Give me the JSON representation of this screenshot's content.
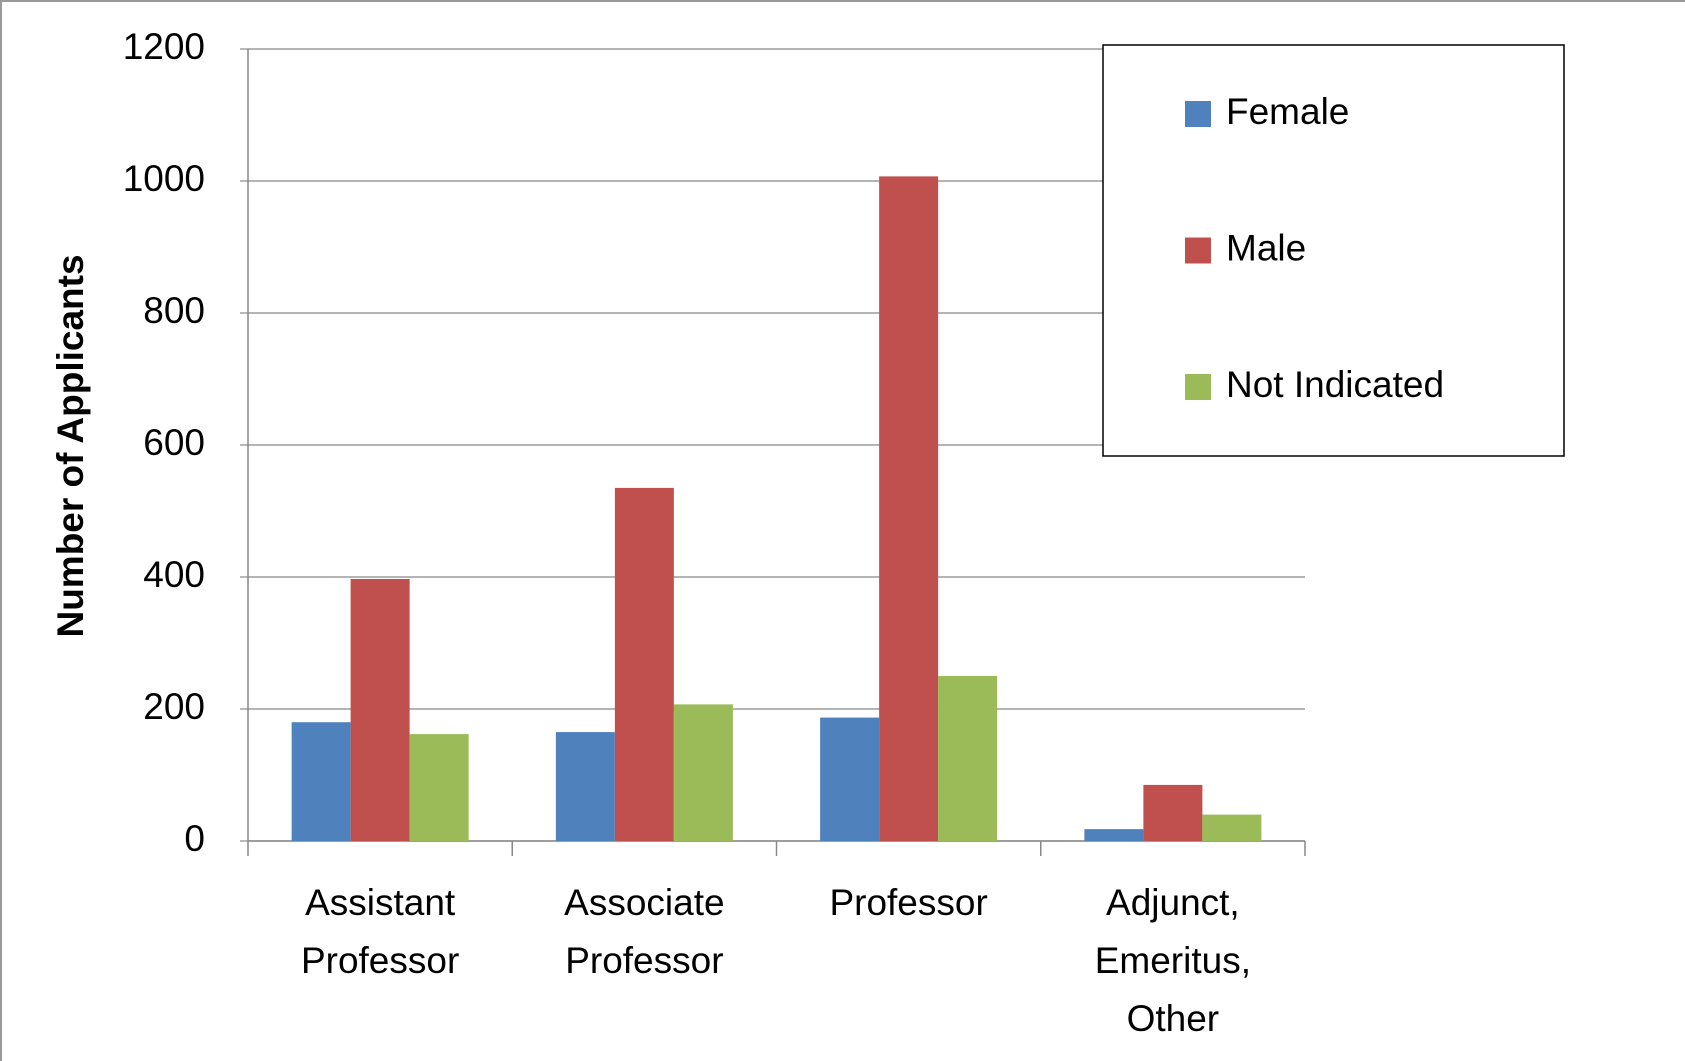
{
  "chart_data": {
    "type": "bar",
    "y_label": "Number of Applicants",
    "categories": [
      "Assistant\nProfessor",
      "Associate\nProfessor",
      "Professor",
      "Adjunct,\nEmeritus,\nOther"
    ],
    "series": [
      {
        "name": "Female",
        "color": "#4f81bd",
        "values": [
          180,
          165,
          187,
          18
        ]
      },
      {
        "name": "Male",
        "color": "#c0504d",
        "values": [
          397,
          535,
          1007,
          85
        ]
      },
      {
        "name": "Not Indicated",
        "color": "#9bbb59",
        "values": [
          162,
          207,
          250,
          40
        ]
      }
    ],
    "ylim": [
      0,
      1200
    ],
    "yticks": [
      0,
      200,
      400,
      600,
      800,
      1000,
      1200
    ],
    "grid": true
  }
}
